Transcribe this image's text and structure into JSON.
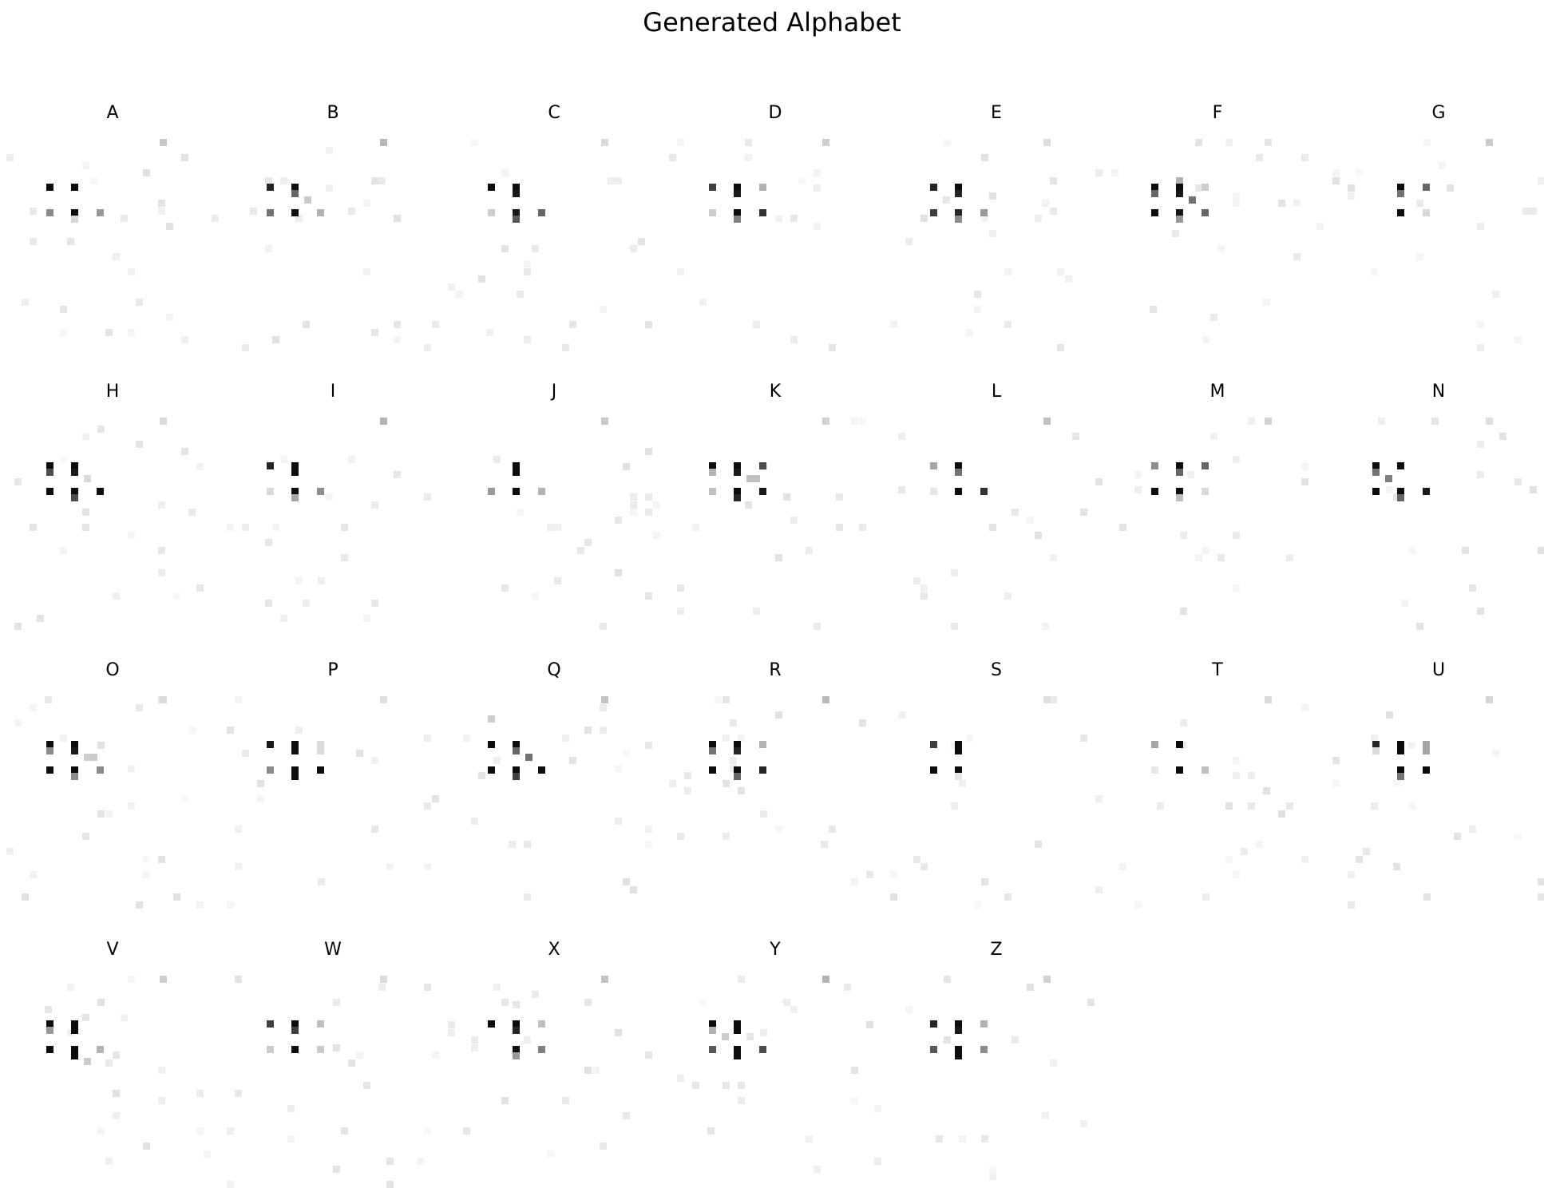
{
  "title": "Generated Alphabet",
  "letters": [
    "A",
    "B",
    "C",
    "D",
    "E",
    "F",
    "G",
    "H",
    "I",
    "J",
    "K",
    "L",
    "M",
    "N",
    "O",
    "P",
    "Q",
    "R",
    "S",
    "T",
    "U",
    "V",
    "W",
    "X",
    "Y",
    "Z"
  ],
  "glyphs": {
    "A": [
      [
        2,
        7,
        0.95
      ],
      [
        6,
        7,
        0.95
      ],
      [
        2,
        11,
        0.45
      ],
      [
        6,
        11,
        0.95
      ],
      [
        6,
        12,
        0.15
      ],
      [
        10,
        11,
        0.4
      ]
    ],
    "B": [
      [
        2,
        7,
        0.85
      ],
      [
        6,
        7,
        0.95
      ],
      [
        6,
        8,
        0.6
      ],
      [
        8,
        9,
        0.2
      ],
      [
        2,
        11,
        0.55
      ],
      [
        6,
        11,
        0.95
      ],
      [
        10,
        11,
        0.3
      ]
    ],
    "C": [
      [
        2,
        7,
        0.95
      ],
      [
        6,
        7,
        0.95
      ],
      [
        6,
        8,
        0.9
      ],
      [
        2,
        11,
        0.2
      ],
      [
        6,
        11,
        0.9
      ],
      [
        6,
        12,
        0.65
      ],
      [
        10,
        11,
        0.6
      ]
    ],
    "D": [
      [
        2,
        7,
        0.75
      ],
      [
        6,
        7,
        0.95
      ],
      [
        6,
        8,
        0.9
      ],
      [
        10,
        7,
        0.3
      ],
      [
        2,
        11,
        0.2
      ],
      [
        6,
        11,
        0.95
      ],
      [
        6,
        12,
        0.5
      ],
      [
        10,
        11,
        0.8
      ]
    ],
    "E": [
      [
        2,
        7,
        0.85
      ],
      [
        6,
        7,
        0.95
      ],
      [
        6,
        8,
        0.85
      ],
      [
        4,
        9,
        0.1
      ],
      [
        2,
        11,
        0.75
      ],
      [
        6,
        11,
        0.85
      ],
      [
        6,
        12,
        0.45
      ],
      [
        10,
        11,
        0.4
      ]
    ],
    "F": [
      [
        2,
        7,
        0.95
      ],
      [
        2,
        8,
        0.6
      ],
      [
        6,
        6,
        0.3
      ],
      [
        6,
        7,
        0.95
      ],
      [
        6,
        8,
        0.9
      ],
      [
        8,
        9,
        0.55
      ],
      [
        10,
        7,
        0.2
      ],
      [
        2,
        11,
        0.95
      ],
      [
        6,
        11,
        0.9
      ],
      [
        6,
        12,
        0.4
      ],
      [
        10,
        11,
        0.6
      ]
    ],
    "G": [
      [
        6,
        7,
        0.95
      ],
      [
        6,
        8,
        0.55
      ],
      [
        10,
        7,
        0.6
      ],
      [
        6,
        11,
        0.95
      ],
      [
        10,
        11,
        0.15
      ]
    ],
    "H": [
      [
        2,
        7,
        0.95
      ],
      [
        2,
        8,
        0.7
      ],
      [
        6,
        7,
        0.95
      ],
      [
        6,
        8,
        0.9
      ],
      [
        8,
        9,
        0.15
      ],
      [
        2,
        11,
        0.95
      ],
      [
        6,
        11,
        0.95
      ],
      [
        6,
        12,
        0.7
      ],
      [
        10,
        11,
        0.95
      ]
    ],
    "I": [
      [
        2,
        7,
        0.85
      ],
      [
        6,
        7,
        0.95
      ],
      [
        6,
        8,
        0.95
      ],
      [
        2,
        11,
        0.15
      ],
      [
        6,
        11,
        0.95
      ],
      [
        6,
        12,
        0.35
      ],
      [
        10,
        11,
        0.45
      ]
    ],
    "J": [
      [
        6,
        7,
        0.95
      ],
      [
        6,
        8,
        0.95
      ],
      [
        2,
        11,
        0.4
      ],
      [
        6,
        11,
        0.95
      ],
      [
        10,
        11,
        0.3
      ]
    ],
    "K": [
      [
        2,
        7,
        0.95
      ],
      [
        2,
        8,
        0.3
      ],
      [
        6,
        7,
        0.95
      ],
      [
        6,
        8,
        0.9
      ],
      [
        8,
        9,
        0.25
      ],
      [
        9,
        9,
        0.25
      ],
      [
        10,
        7,
        0.7
      ],
      [
        2,
        11,
        0.25
      ],
      [
        6,
        11,
        0.95
      ],
      [
        6,
        12,
        0.85
      ],
      [
        10,
        11,
        0.9
      ]
    ],
    "L": [
      [
        2,
        7,
        0.35
      ],
      [
        6,
        7,
        0.95
      ],
      [
        6,
        8,
        0.55
      ],
      [
        2,
        11,
        0.1
      ],
      [
        6,
        11,
        0.95
      ],
      [
        10,
        11,
        0.8
      ]
    ],
    "M": [
      [
        2,
        7,
        0.45
      ],
      [
        6,
        7,
        0.95
      ],
      [
        6,
        8,
        0.6
      ],
      [
        10,
        7,
        0.6
      ],
      [
        2,
        11,
        0.95
      ],
      [
        6,
        11,
        0.95
      ],
      [
        6,
        12,
        0.25
      ],
      [
        10,
        11,
        0.15
      ]
    ],
    "N": [
      [
        2,
        7,
        0.95
      ],
      [
        2,
        8,
        0.55
      ],
      [
        4,
        9,
        0.5
      ],
      [
        6,
        7,
        0.95
      ],
      [
        2,
        11,
        0.95
      ],
      [
        6,
        11,
        0.95
      ],
      [
        6,
        12,
        0.6
      ],
      [
        10,
        11,
        0.9
      ]
    ],
    "O": [
      [
        2,
        7,
        0.95
      ],
      [
        2,
        8,
        0.45
      ],
      [
        6,
        7,
        0.95
      ],
      [
        6,
        8,
        0.9
      ],
      [
        8,
        9,
        0.2
      ],
      [
        9,
        9,
        0.2
      ],
      [
        2,
        11,
        0.95
      ],
      [
        6,
        11,
        0.95
      ],
      [
        6,
        12,
        0.45
      ],
      [
        10,
        11,
        0.45
      ]
    ],
    "P": [
      [
        2,
        7,
        0.9
      ],
      [
        6,
        7,
        0.95
      ],
      [
        6,
        8,
        0.95
      ],
      [
        10,
        7,
        0.15
      ],
      [
        10,
        8,
        0.15
      ],
      [
        2,
        11,
        0.45
      ],
      [
        6,
        11,
        0.95
      ],
      [
        6,
        12,
        0.95
      ],
      [
        10,
        11,
        0.95
      ]
    ],
    "Q": [
      [
        2,
        7,
        0.95
      ],
      [
        6,
        7,
        0.95
      ],
      [
        6,
        8,
        0.6
      ],
      [
        8,
        9,
        0.55
      ],
      [
        2,
        11,
        0.95
      ],
      [
        6,
        11,
        0.95
      ],
      [
        6,
        12,
        0.75
      ],
      [
        10,
        11,
        0.95
      ],
      [
        2,
        3,
        0.2
      ]
    ],
    "R": [
      [
        2,
        7,
        0.95
      ],
      [
        2,
        8,
        0.55
      ],
      [
        6,
        7,
        0.95
      ],
      [
        6,
        8,
        0.85
      ],
      [
        10,
        7,
        0.3
      ],
      [
        2,
        11,
        0.95
      ],
      [
        6,
        11,
        0.95
      ],
      [
        6,
        12,
        0.6
      ],
      [
        10,
        11,
        0.85
      ]
    ],
    "S": [
      [
        2,
        7,
        0.75
      ],
      [
        6,
        7,
        0.95
      ],
      [
        6,
        8,
        0.95
      ],
      [
        2,
        11,
        0.95
      ],
      [
        6,
        11,
        0.95
      ],
      [
        6,
        12,
        0.1
      ]
    ],
    "T": [
      [
        2,
        7,
        0.35
      ],
      [
        6,
        7,
        0.95
      ],
      [
        6,
        11,
        0.95
      ],
      [
        10,
        11,
        0.25
      ],
      [
        2,
        11,
        0.1
      ]
    ],
    "U": [
      [
        2,
        7,
        0.85
      ],
      [
        2,
        8,
        0.15
      ],
      [
        6,
        7,
        0.95
      ],
      [
        6,
        8,
        0.95
      ],
      [
        10,
        7,
        0.35
      ],
      [
        10,
        8,
        0.35
      ],
      [
        6,
        11,
        0.95
      ],
      [
        6,
        12,
        0.55
      ],
      [
        10,
        11,
        0.95
      ]
    ],
    "V": [
      [
        2,
        7,
        0.95
      ],
      [
        2,
        8,
        0.4
      ],
      [
        6,
        7,
        0.95
      ],
      [
        6,
        8,
        0.95
      ],
      [
        2,
        11,
        0.95
      ],
      [
        6,
        11,
        0.95
      ],
      [
        6,
        12,
        0.95
      ],
      [
        10,
        11,
        0.3
      ],
      [
        8,
        13,
        0.2
      ]
    ],
    "W": [
      [
        2,
        7,
        0.75
      ],
      [
        6,
        7,
        0.95
      ],
      [
        6,
        8,
        0.75
      ],
      [
        10,
        7,
        0.25
      ],
      [
        2,
        11,
        0.2
      ],
      [
        6,
        11,
        0.95
      ],
      [
        10,
        11,
        0.2
      ]
    ],
    "X": [
      [
        2,
        7,
        0.95
      ],
      [
        6,
        7,
        0.95
      ],
      [
        6,
        8,
        0.85
      ],
      [
        10,
        7,
        0.25
      ],
      [
        6,
        11,
        0.95
      ],
      [
        6,
        12,
        0.4
      ],
      [
        10,
        11,
        0.5
      ],
      [
        6,
        4,
        0.1
      ]
    ],
    "Y": [
      [
        2,
        7,
        0.95
      ],
      [
        2,
        8,
        0.3
      ],
      [
        4,
        9,
        0.2
      ],
      [
        6,
        7,
        0.95
      ],
      [
        6,
        8,
        0.95
      ],
      [
        8,
        9,
        0.1
      ],
      [
        2,
        11,
        0.65
      ],
      [
        6,
        11,
        0.95
      ],
      [
        6,
        12,
        0.95
      ],
      [
        10,
        11,
        0.7
      ]
    ],
    "Z": [
      [
        2,
        7,
        0.85
      ],
      [
        6,
        7,
        0.95
      ],
      [
        6,
        8,
        0.9
      ],
      [
        10,
        7,
        0.3
      ],
      [
        2,
        11,
        0.65
      ],
      [
        6,
        11,
        0.95
      ],
      [
        6,
        12,
        0.95
      ],
      [
        10,
        11,
        0.45
      ]
    ]
  }
}
